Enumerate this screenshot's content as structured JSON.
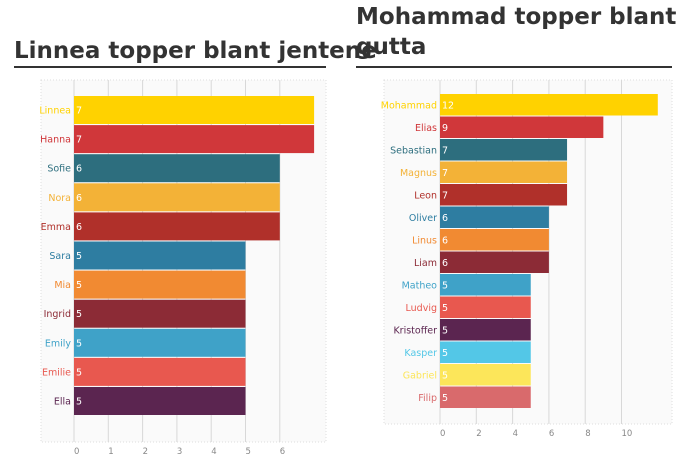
{
  "charts": [
    {
      "title": "Linnea topper blant jentene",
      "chart_data": {
        "type": "bar",
        "orientation": "horizontal",
        "categories": [
          "Linnea",
          "Hanna",
          "Sofie",
          "Nora",
          "Emma",
          "Sara",
          "Mia",
          "Ingrid",
          "Emily",
          "Emilie",
          "Ella"
        ],
        "values": [
          7,
          7,
          6,
          6,
          6,
          5,
          5,
          5,
          5,
          5,
          5
        ],
        "colors": [
          "#FFD200",
          "#D0373A",
          "#2D6E7E",
          "#F3B237",
          "#B0302A",
          "#2E7DA1",
          "#F18A32",
          "#8C2B36",
          "#3FA2C8",
          "#E8584F",
          "#5B2550"
        ],
        "xticks": [
          "0",
          "1",
          "2",
          "3",
          "4",
          "5",
          "6"
        ],
        "xlim": [
          0,
          7
        ],
        "grid": true
      }
    },
    {
      "title": "Mohammad topper blant gutta",
      "chart_data": {
        "type": "bar",
        "orientation": "horizontal",
        "categories": [
          "Mohammad",
          "Elias",
          "Sebastian",
          "Magnus",
          "Leon",
          "Oliver",
          "Linus",
          "Liam",
          "Matheo",
          "Ludvig",
          "Kristoffer",
          "Kasper",
          "Gabriel",
          "Filip"
        ],
        "values": [
          12,
          9,
          7,
          7,
          7,
          6,
          6,
          6,
          5,
          5,
          5,
          5,
          5,
          5
        ],
        "colors": [
          "#FFD200",
          "#D0373A",
          "#2D6E7E",
          "#F3B237",
          "#B0302A",
          "#2E7DA1",
          "#F18A32",
          "#8C2B36",
          "#3FA2C8",
          "#E8584F",
          "#5B2550",
          "#53C7E7",
          "#FCE65A",
          "#D96A6C"
        ],
        "xticks": [
          "0",
          "2",
          "4",
          "6",
          "8",
          "10"
        ],
        "xlim": [
          0,
          12
        ],
        "grid": true
      }
    }
  ]
}
